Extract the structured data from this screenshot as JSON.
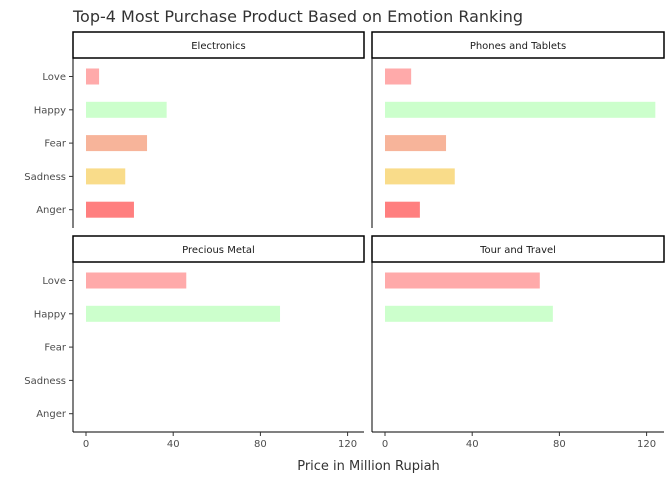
{
  "chart_data": {
    "type": "bar",
    "orientation": "horizontal",
    "title": "Top-4 Most Purchase Product Based on Emotion Ranking",
    "xlabel": "Price in Million Rupiah",
    "ylabel": "",
    "xlim": [
      0,
      130
    ],
    "xticks": [
      "0",
      "40",
      "80",
      "120"
    ],
    "categories": [
      "Love",
      "Happy",
      "Fear",
      "Sadness",
      "Anger"
    ],
    "colors": {
      "Love": "#ffaaaa",
      "Happy": "#ccffcc",
      "Fear": "#f7b49a",
      "Sadness": "#f9dc8a",
      "Anger": "#ff7f7f"
    },
    "facets": [
      {
        "name": "Electronics",
        "values": {
          "Love": 6,
          "Happy": 37,
          "Fear": 28,
          "Sadness": 18,
          "Anger": 22
        }
      },
      {
        "name": "Phones and Tablets",
        "values": {
          "Love": 12,
          "Happy": 124,
          "Fear": 28,
          "Sadness": 32,
          "Anger": 16
        }
      },
      {
        "name": "Precious Metal",
        "values": {
          "Love": 46,
          "Happy": 89,
          "Fear": null,
          "Sadness": null,
          "Anger": null
        }
      },
      {
        "name": "Tour and Travel",
        "values": {
          "Love": 71,
          "Happy": 77,
          "Fear": null,
          "Sadness": null,
          "Anger": null
        }
      }
    ]
  }
}
